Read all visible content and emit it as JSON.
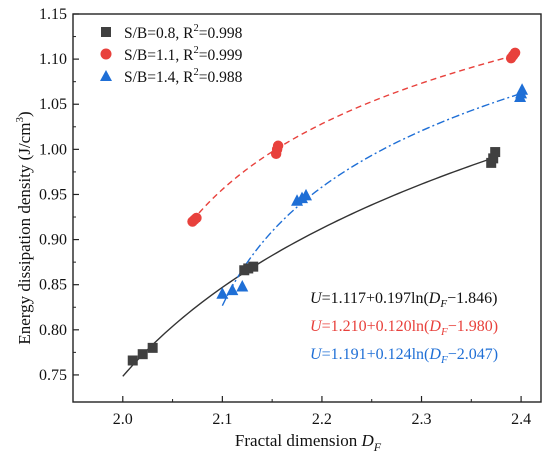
{
  "chart_data": {
    "type": "scatter",
    "xlabel": "Fractal dimension",
    "xlabel_symbol": "D",
    "xlabel_subscript": "F",
    "ylabel": "Energy dissipation density (J/cm",
    "ylabel_sup": "3",
    "ylabel_close": ")",
    "xlim": [
      1.95,
      2.42
    ],
    "ylim": [
      0.72,
      1.15
    ],
    "xticks": [
      2.0,
      2.1,
      2.2,
      2.3,
      2.4
    ],
    "yticks": [
      0.75,
      0.8,
      0.85,
      0.9,
      0.95,
      1.0,
      1.05,
      1.1,
      1.15
    ],
    "xtick_labels": [
      "2.0",
      "2.1",
      "2.2",
      "2.3",
      "2.4"
    ],
    "ytick_labels": [
      "0.75",
      "0.80",
      "0.85",
      "0.90",
      "0.95",
      "1.00",
      "1.05",
      "1.10",
      "1.15"
    ],
    "legend_position": "top-left",
    "series": [
      {
        "name": "S/B=0.8, R",
        "name_sup": "2",
        "name_tail": "=0.998",
        "marker": "square",
        "color": "#404040",
        "line_color": "#333333",
        "line_style": "solid",
        "points": [
          {
            "x": 2.01,
            "y": 0.766
          },
          {
            "x": 2.02,
            "y": 0.773
          },
          {
            "x": 2.03,
            "y": 0.78
          },
          {
            "x": 2.122,
            "y": 0.866
          },
          {
            "x": 2.126,
            "y": 0.868
          },
          {
            "x": 2.131,
            "y": 0.87
          },
          {
            "x": 2.37,
            "y": 0.985
          },
          {
            "x": 2.372,
            "y": 0.99
          },
          {
            "x": 2.374,
            "y": 0.997
          }
        ],
        "fit": {
          "a": 1.117,
          "b": 0.197,
          "c": 1.846,
          "x_range": [
            2.0,
            2.375
          ]
        },
        "equation": {
          "lhs": "U",
          "text": "=1.117+0.197ln(",
          "var": "D",
          "sub": "F",
          "tail": "−1.846)"
        }
      },
      {
        "name": "S/B=1.1, R",
        "name_sup": "2",
        "name_tail": "=0.999",
        "marker": "circle",
        "color": "#e8413c",
        "line_color": "#e8413c",
        "line_style": "dashed",
        "points": [
          {
            "x": 2.07,
            "y": 0.92
          },
          {
            "x": 2.072,
            "y": 0.922
          },
          {
            "x": 2.074,
            "y": 0.924
          },
          {
            "x": 2.154,
            "y": 0.995
          },
          {
            "x": 2.155,
            "y": 1.0
          },
          {
            "x": 2.156,
            "y": 1.004
          },
          {
            "x": 2.39,
            "y": 1.101
          },
          {
            "x": 2.392,
            "y": 1.104
          },
          {
            "x": 2.394,
            "y": 1.107
          }
        ],
        "fit": {
          "a": 1.21,
          "b": 0.12,
          "c": 1.98,
          "x_range": [
            2.07,
            2.395
          ]
        },
        "equation": {
          "lhs": "U",
          "text": "=1.210+0.120ln(",
          "var": "D",
          "sub": "F",
          "tail": "−1.980)"
        }
      },
      {
        "name": "S/B=1.4, R",
        "name_sup": "2",
        "name_tail": "=0.988",
        "marker": "triangle",
        "color": "#1f6fd6",
        "line_color": "#1f6fd6",
        "line_style": "dashdot",
        "points": [
          {
            "x": 2.1,
            "y": 0.84
          },
          {
            "x": 2.11,
            "y": 0.844
          },
          {
            "x": 2.12,
            "y": 0.848
          },
          {
            "x": 2.175,
            "y": 0.943
          },
          {
            "x": 2.18,
            "y": 0.946
          },
          {
            "x": 2.184,
            "y": 0.949
          },
          {
            "x": 2.399,
            "y": 1.058
          },
          {
            "x": 2.4,
            "y": 1.062
          },
          {
            "x": 2.401,
            "y": 1.066
          }
        ],
        "fit": {
          "a": 1.191,
          "b": 0.124,
          "c": 2.047,
          "x_range": [
            2.1,
            2.4
          ]
        },
        "equation": {
          "lhs": "U",
          "text": "=1.191+0.124ln(",
          "var": "D",
          "sub": "F",
          "tail": "−2.047)"
        }
      }
    ]
  }
}
